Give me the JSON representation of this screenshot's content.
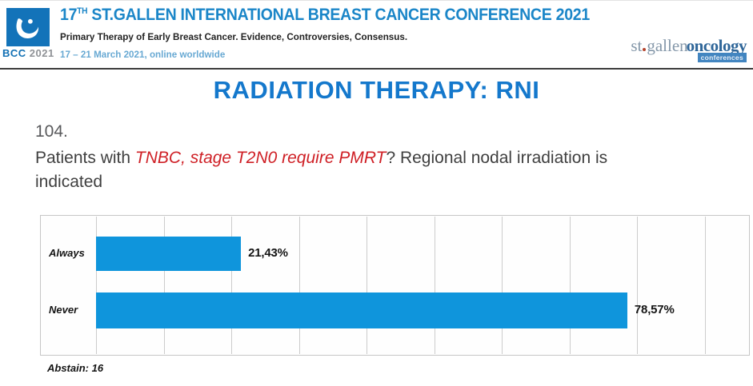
{
  "header": {
    "badge": {
      "bcc": "BCC",
      "year": "2021"
    },
    "title_prefix": "17",
    "title_sup": "TH",
    "title_rest": " ST.GALLEN INTERNATIONAL BREAST CANCER CONFERENCE 2021",
    "subtitle": "Primary Therapy of Early Breast Cancer. Evidence, Controversies, Consensus.",
    "dates": "17 – 21 March 2021, online worldwide",
    "logo_right": {
      "part1": "st",
      "part2": "gallen",
      "part3": "oncology",
      "badge": "conferences"
    }
  },
  "slide": {
    "title": "RADIATION THERAPY: RNI",
    "question_number": "104.",
    "question_prefix": "Patients with ",
    "question_highlight": "TNBC, stage T2N0 require PMRT",
    "question_suffix": "? Regional nodal irradiation is indicated",
    "abstain": "Abstain: 16"
  },
  "chart_data": {
    "type": "bar",
    "orientation": "horizontal",
    "title": "Patients with TNBC, stage T2N0 require PMRT? Regional nodal irradiation is indicated",
    "categories": [
      "Always",
      "Never"
    ],
    "values": [
      21.43,
      78.57
    ],
    "value_labels": [
      "21,43%",
      "78,57%"
    ],
    "xlim": [
      0,
      97
    ],
    "gridline_interval": 10,
    "grid": true,
    "legend": false,
    "bar_color": "#0f95dc",
    "abstain_count": 16
  },
  "colors": {
    "header_blue": "#1b86c8",
    "date_blue": "#68a9d3",
    "title_blue": "#1478cc",
    "highlight_red": "#cf2026",
    "bar_blue": "#0f95dc",
    "logo_square_blue": "#1373b9"
  }
}
